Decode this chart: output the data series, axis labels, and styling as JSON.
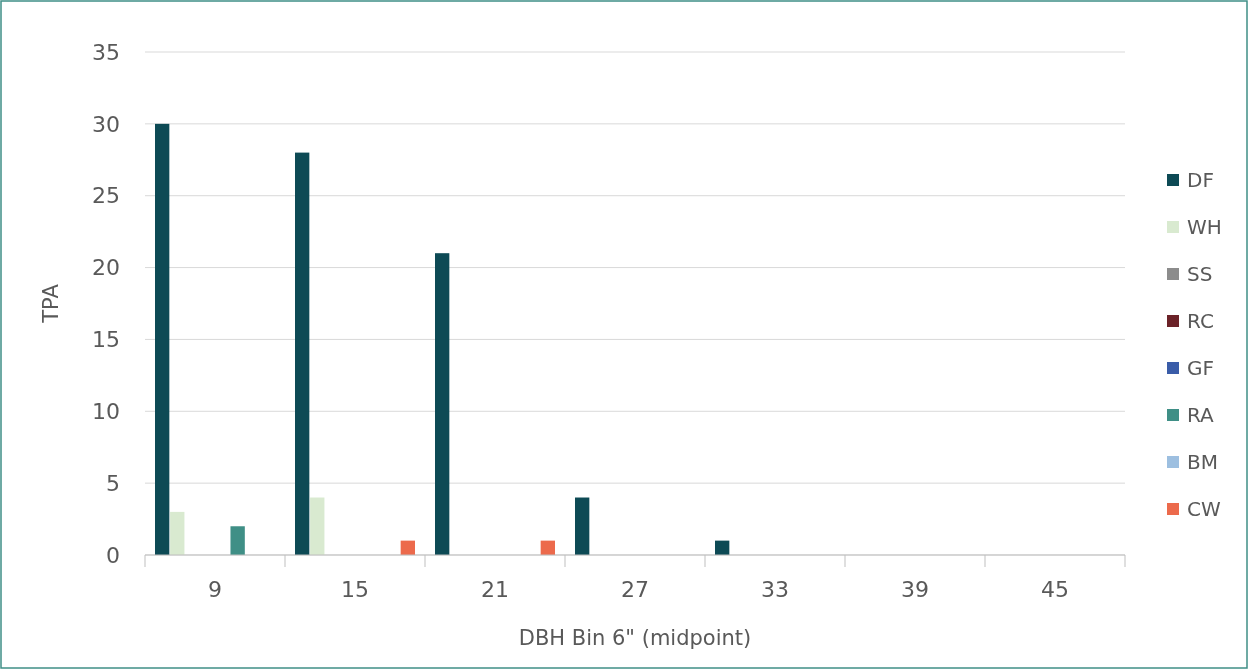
{
  "chart_data": {
    "type": "bar",
    "xlabel": "DBH Bin 6\" (midpoint)",
    "ylabel": "TPA",
    "categories": [
      "9",
      "15",
      "21",
      "27",
      "33",
      "39",
      "45"
    ],
    "series": [
      {
        "name": "DF",
        "color": "#0d4a55",
        "values": [
          30,
          28,
          21,
          4,
          1,
          0,
          0
        ]
      },
      {
        "name": "WH",
        "color": "#d9ead0",
        "values": [
          3,
          4,
          0,
          0,
          0,
          0,
          0
        ]
      },
      {
        "name": "SS",
        "color": "#8c8c8c",
        "values": [
          0,
          0,
          0,
          0,
          0,
          0,
          0
        ]
      },
      {
        "name": "RC",
        "color": "#6b2228",
        "values": [
          0,
          0,
          0,
          0,
          0,
          0,
          0
        ]
      },
      {
        "name": "GF",
        "color": "#3a5ca8",
        "values": [
          0,
          0,
          0,
          0,
          0,
          0,
          0
        ]
      },
      {
        "name": "RA",
        "color": "#3f8f86",
        "values": [
          2,
          0,
          0,
          0,
          0,
          0,
          0
        ]
      },
      {
        "name": "BM",
        "color": "#9dbfe0",
        "values": [
          0,
          0,
          0,
          0,
          0,
          0,
          0
        ]
      },
      {
        "name": "CW",
        "color": "#ec6a4c",
        "values": [
          0,
          1,
          1,
          0,
          0,
          0,
          0
        ]
      }
    ],
    "ylim": [
      0,
      35
    ],
    "yticks": [
      0,
      5,
      10,
      15,
      20,
      25,
      30,
      35
    ],
    "grid": "y",
    "legend": "right"
  }
}
